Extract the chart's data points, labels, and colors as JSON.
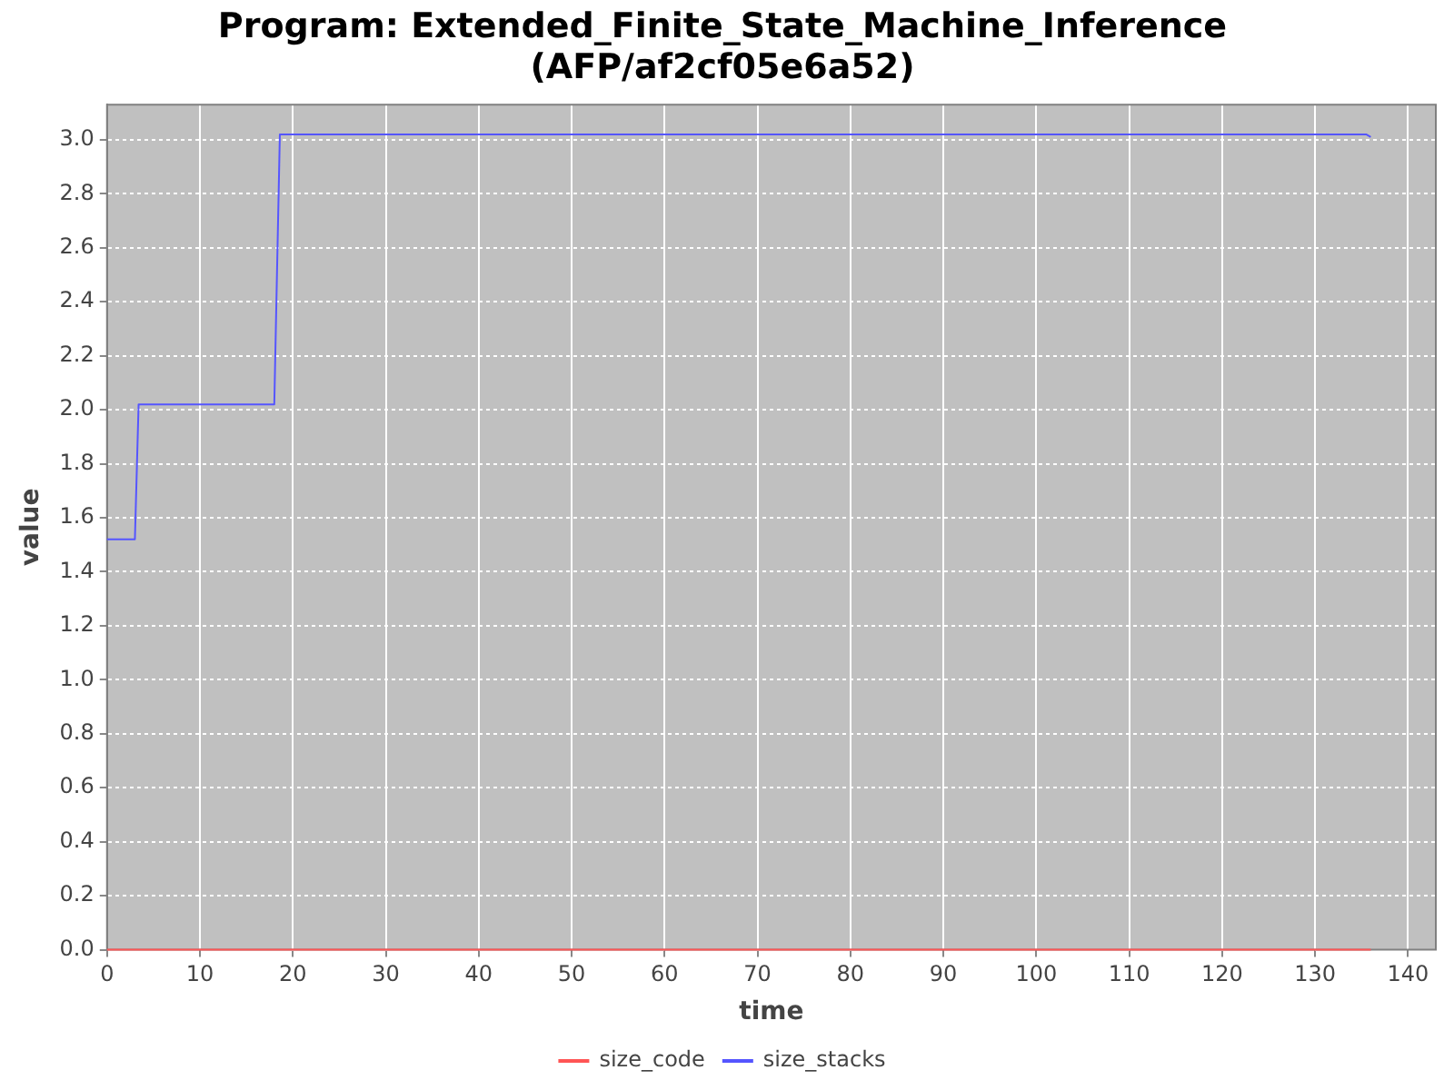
{
  "chart_data": {
    "type": "line",
    "title": "Program: Extended_Finite_State_Machine_Inference\n(AFP/af2cf05e6a52)",
    "xlabel": "time",
    "ylabel": "value",
    "series": [
      {
        "name": "size_code",
        "color": "#ff5555",
        "x": [
          0,
          136
        ],
        "values": [
          0,
          0
        ]
      },
      {
        "name": "size_stacks",
        "color": "#5555ff",
        "x": [
          0,
          3,
          3.4,
          18,
          18.6,
          135.5,
          136
        ],
        "values": [
          1.52,
          1.52,
          2.02,
          2.02,
          3.02,
          3.02,
          3.01
        ]
      }
    ],
    "xlim": [
      0,
      143
    ],
    "xticks": [
      0,
      10,
      20,
      30,
      40,
      50,
      60,
      70,
      80,
      90,
      100,
      110,
      120,
      130,
      140
    ],
    "ylim": [
      0,
      3.13
    ],
    "yticks": [
      {
        "value": 0,
        "label": "0.0"
      },
      0.2,
      0.4,
      0.6,
      0.8,
      {
        "value": 1,
        "label": "1.0"
      },
      1.2,
      1.4,
      1.6,
      1.8,
      {
        "value": 2,
        "label": "2.0"
      },
      2.2,
      2.4,
      2.6,
      2.8,
      {
        "value": 3,
        "label": "3.0"
      }
    ],
    "grid": true,
    "legend": "bottom",
    "marker": "none",
    "line_style": "solid"
  }
}
